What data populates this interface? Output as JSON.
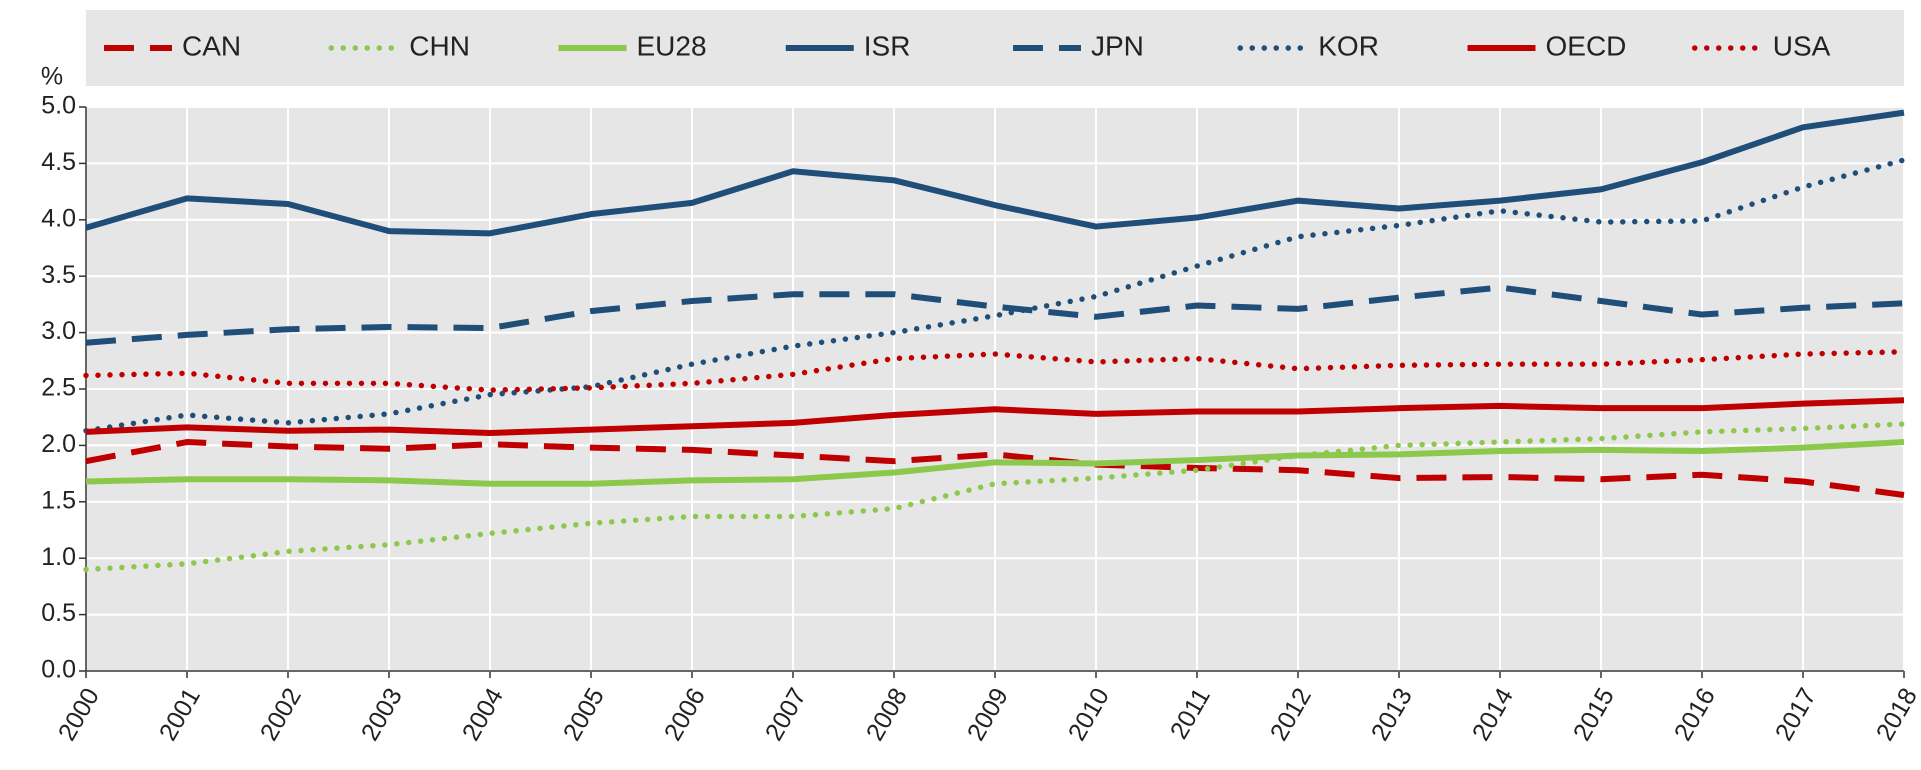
{
  "chart_data": {
    "type": "line",
    "y_axis_label": "%",
    "x": [
      2000,
      2001,
      2002,
      2003,
      2004,
      2005,
      2006,
      2007,
      2008,
      2009,
      2010,
      2011,
      2012,
      2013,
      2014,
      2015,
      2016,
      2017,
      2018
    ],
    "xlim": [
      2000,
      2018
    ],
    "ylim": [
      0,
      5
    ],
    "yticks": [
      {
        "value": 0,
        "label": "0.0"
      },
      {
        "value": 0.5,
        "label": "0.5"
      },
      {
        "value": 1,
        "label": "1.0"
      },
      {
        "value": 1.5,
        "label": "1.5"
      },
      {
        "value": 2,
        "label": "2.0"
      },
      {
        "value": 2.5,
        "label": "2.5"
      },
      {
        "value": 3,
        "label": "3.0"
      },
      {
        "value": 3.5,
        "label": "3.5"
      },
      {
        "value": 4,
        "label": "4.0"
      },
      {
        "value": 4.5,
        "label": "4.5"
      },
      {
        "value": 5,
        "label": "5.0"
      }
    ],
    "grid": true,
    "legend_position": "top",
    "series": [
      {
        "name": "CAN",
        "color": "#c00000",
        "dash": "dashed",
        "values": [
          1.86,
          2.03,
          1.99,
          1.97,
          2.01,
          1.98,
          1.96,
          1.91,
          1.86,
          1.92,
          1.83,
          1.8,
          1.78,
          1.71,
          1.72,
          1.7,
          1.74,
          1.68,
          1.56
        ]
      },
      {
        "name": "CHN",
        "color": "#8cc84b",
        "dash": "dotted",
        "values": [
          0.9,
          0.95,
          1.06,
          1.12,
          1.22,
          1.31,
          1.37,
          1.37,
          1.44,
          1.66,
          1.71,
          1.78,
          1.91,
          2.0,
          2.03,
          2.06,
          2.12,
          2.15,
          2.19
        ]
      },
      {
        "name": "EU28",
        "color": "#8cc84b",
        "dash": "solid",
        "values": [
          1.68,
          1.7,
          1.7,
          1.69,
          1.66,
          1.66,
          1.69,
          1.7,
          1.76,
          1.85,
          1.84,
          1.87,
          1.91,
          1.92,
          1.95,
          1.96,
          1.95,
          1.98,
          2.03
        ]
      },
      {
        "name": "ISR",
        "color": "#1f4e79",
        "dash": "solid",
        "values": [
          3.93,
          4.19,
          4.14,
          3.9,
          3.88,
          4.05,
          4.15,
          4.43,
          4.35,
          4.13,
          3.94,
          4.02,
          4.17,
          4.1,
          4.17,
          4.27,
          4.51,
          4.82,
          4.95
        ]
      },
      {
        "name": "JPN",
        "color": "#1f4e79",
        "dash": "dashed",
        "values": [
          2.91,
          2.98,
          3.03,
          3.05,
          3.04,
          3.19,
          3.28,
          3.34,
          3.34,
          3.23,
          3.14,
          3.24,
          3.21,
          3.31,
          3.4,
          3.28,
          3.16,
          3.22,
          3.26
        ]
      },
      {
        "name": "KOR",
        "color": "#1f4e79",
        "dash": "dotted",
        "values": [
          2.13,
          2.27,
          2.2,
          2.28,
          2.45,
          2.52,
          2.72,
          2.88,
          3.0,
          3.15,
          3.32,
          3.59,
          3.85,
          3.95,
          4.08,
          3.98,
          3.99,
          4.29,
          4.53
        ]
      },
      {
        "name": "OECD",
        "color": "#c00000",
        "dash": "solid",
        "values": [
          2.12,
          2.16,
          2.13,
          2.14,
          2.11,
          2.14,
          2.17,
          2.2,
          2.27,
          2.32,
          2.28,
          2.3,
          2.3,
          2.33,
          2.35,
          2.33,
          2.33,
          2.37,
          2.4
        ]
      },
      {
        "name": "USA",
        "color": "#c00000",
        "dash": "dotted",
        "values": [
          2.62,
          2.64,
          2.55,
          2.55,
          2.49,
          2.51,
          2.55,
          2.63,
          2.77,
          2.81,
          2.74,
          2.77,
          2.68,
          2.71,
          2.72,
          2.72,
          2.76,
          2.81,
          2.83
        ]
      }
    ]
  }
}
